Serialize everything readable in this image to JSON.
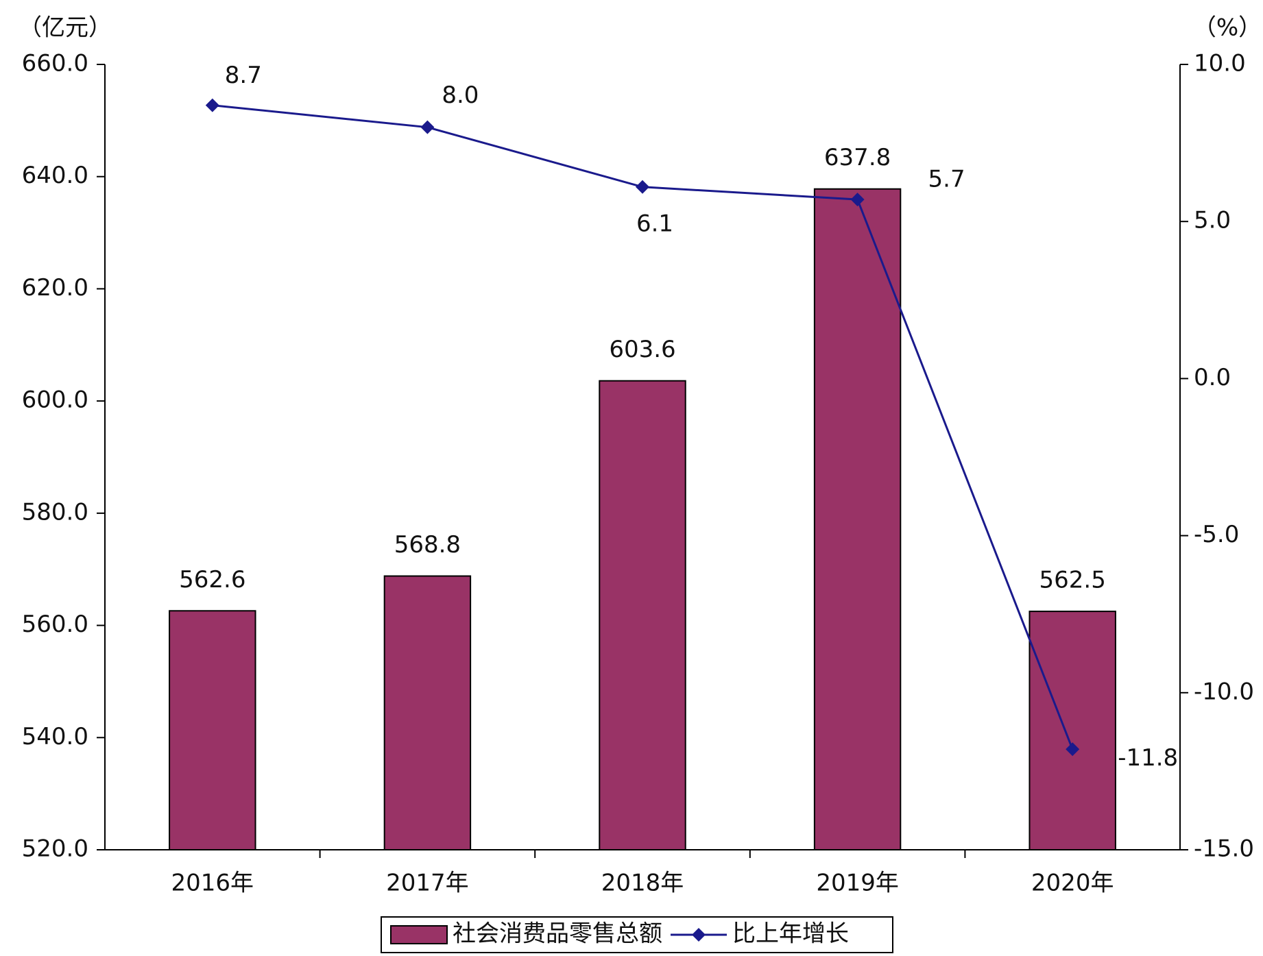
{
  "chart_data": {
    "type": "combo",
    "y_label": "（亿元）",
    "y2_label": "（%）",
    "categories": [
      "2016年",
      "2017年",
      "2018年",
      "2019年",
      "2020年"
    ],
    "series": [
      {
        "name": "社会消费品零售总额",
        "type": "bar",
        "color": "#993366",
        "values": [
          562.6,
          568.8,
          603.6,
          637.8,
          562.5
        ]
      },
      {
        "name": "比上年增长",
        "type": "line",
        "axis": "y2",
        "color": "#1a1a8c",
        "values": [
          8.7,
          8.0,
          6.1,
          5.7,
          -11.8
        ],
        "value_labels": [
          "8.7",
          "8.0",
          "6.1",
          "5.7",
          "-11.8"
        ]
      }
    ],
    "ylim": [
      520,
      660
    ],
    "yticks": [
      {
        "value": 520,
        "label": "520.0"
      },
      {
        "value": 540,
        "label": "540.0"
      },
      {
        "value": 560,
        "label": "560.0"
      },
      {
        "value": 580,
        "label": "580.0"
      },
      {
        "value": 600,
        "label": "600.0"
      },
      {
        "value": 620,
        "label": "620.0"
      },
      {
        "value": 640,
        "label": "640.0"
      },
      {
        "value": 660,
        "label": "660.0"
      }
    ],
    "y2lim": [
      -15,
      10
    ],
    "y2ticks": [
      {
        "value": -15,
        "label": "-15.0"
      },
      {
        "value": -10,
        "label": "-10.0"
      },
      {
        "value": -5,
        "label": "-5.0"
      },
      {
        "value": 0,
        "label": "0.0"
      },
      {
        "value": 5,
        "label": "5.0"
      },
      {
        "value": 10,
        "label": "10.0"
      }
    ],
    "legend": "bottom"
  }
}
